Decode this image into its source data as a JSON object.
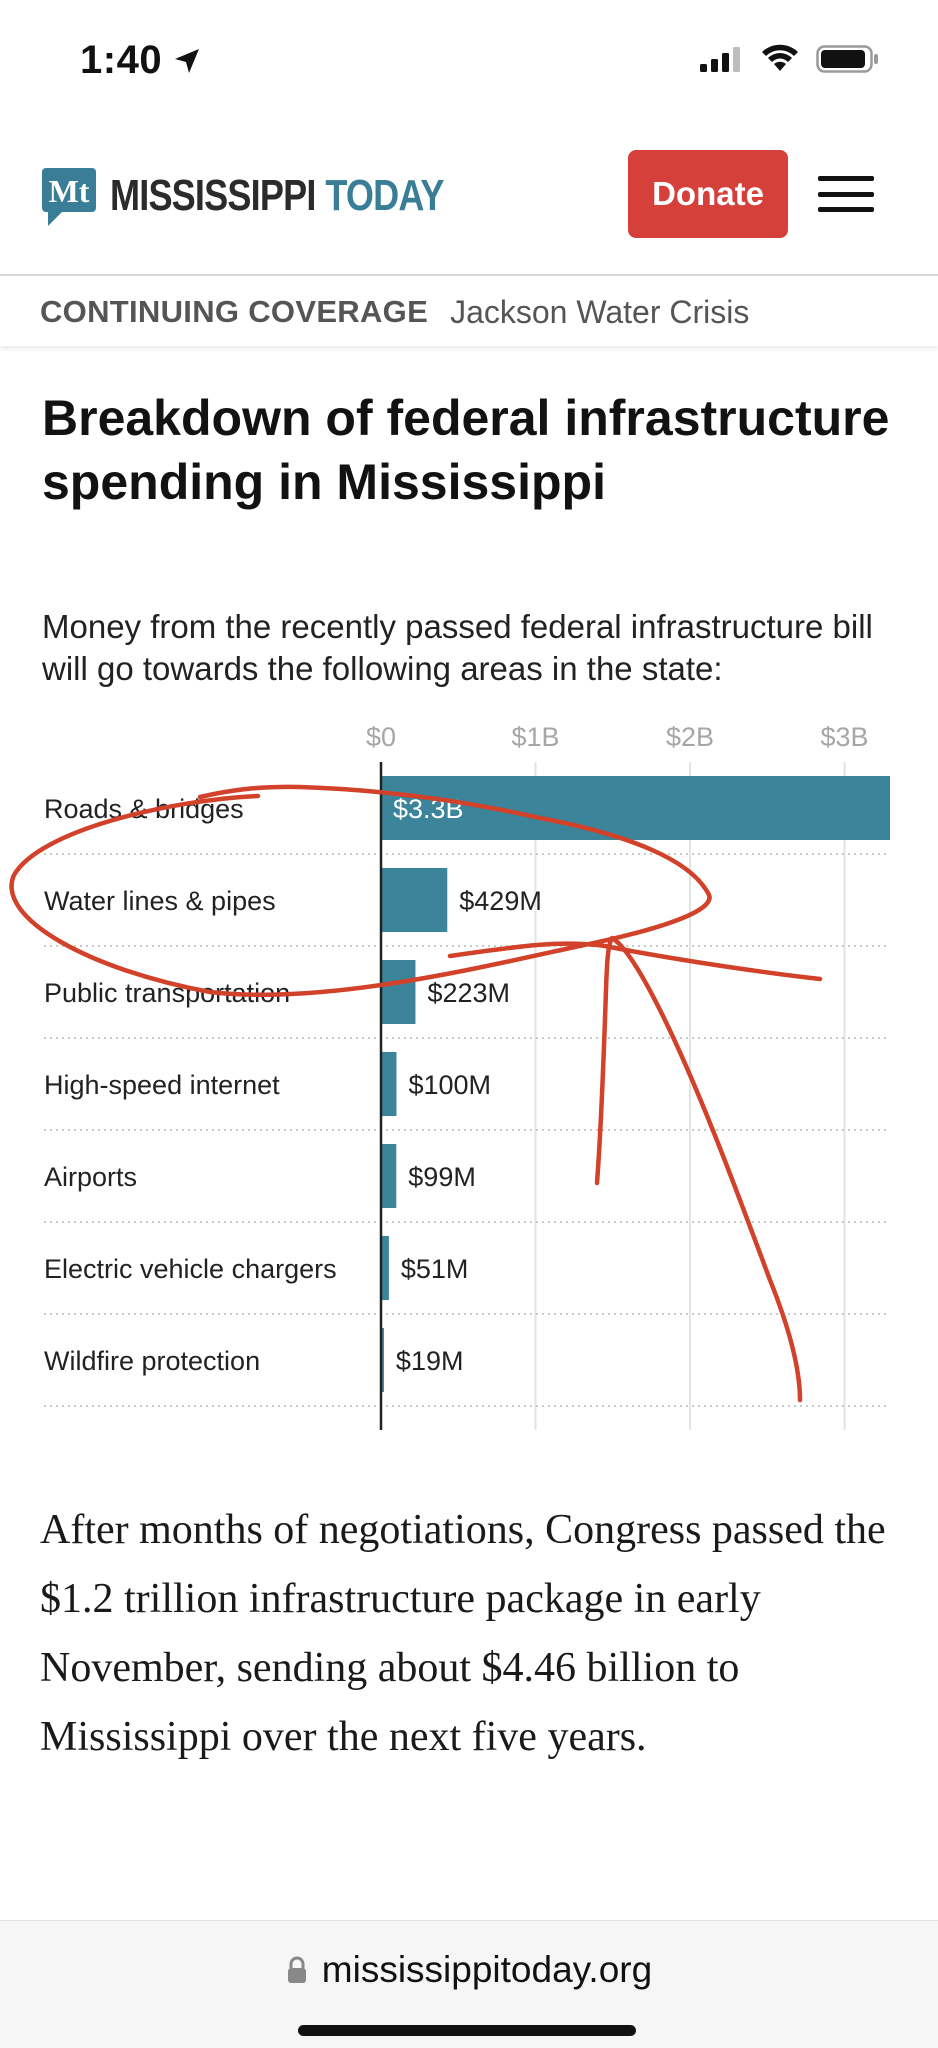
{
  "status_bar": {
    "time": "1:40"
  },
  "header": {
    "logo_word_1": "MISSISSIPPI",
    "logo_word_2": "TODAY",
    "logo_mark": "Mt",
    "donate_label": "Donate",
    "menu_icon": "hamburger-menu-icon"
  },
  "coverage": {
    "label": "CONTINUING COVERAGE",
    "topic": "Jackson Water Crisis"
  },
  "article": {
    "headline": "Breakdown of federal infrastructure spending in Mississippi",
    "dek": "Money from the recently passed federal infrastructure bill will go towards the following areas in the state:",
    "body": "After months of negotiations, Congress passed the $1.2 trillion infrastructure package in early November, sending about $4.46 billion to Mississippi over the next five years."
  },
  "chart_data": {
    "type": "bar",
    "orientation": "horizontal",
    "categories": [
      "Roads & bridges",
      "Water lines & pipes",
      "Public transportation",
      "High-speed internet",
      "Airports",
      "Electric vehicle chargers",
      "Wildfire protection"
    ],
    "values": [
      3300,
      429,
      223,
      100,
      99,
      51,
      19
    ],
    "value_units": "millions of dollars",
    "data_labels": [
      "$3.3B",
      "$429M",
      "$223M",
      "$100M",
      "$99M",
      "$51M",
      "$19M"
    ],
    "xticks": [
      0,
      1000,
      2000,
      3000
    ],
    "xtick_labels": [
      "$0",
      "$1B",
      "$2B",
      "$3B"
    ],
    "xlim": [
      0,
      3300
    ],
    "bar_color": "#3b849a",
    "grid": true
  },
  "annotation_color": "#d2412a",
  "url_bar": {
    "url": "mississippitoday.org",
    "lock_icon": "lock-icon"
  }
}
